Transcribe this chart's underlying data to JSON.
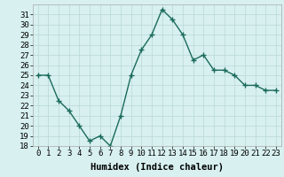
{
  "x": [
    0,
    1,
    2,
    3,
    4,
    5,
    6,
    7,
    8,
    9,
    10,
    11,
    12,
    13,
    14,
    15,
    16,
    17,
    18,
    19,
    20,
    21,
    22,
    23
  ],
  "y": [
    25,
    25,
    22.5,
    21.5,
    20,
    18.5,
    19,
    18,
    21,
    25,
    27.5,
    29,
    31.5,
    30.5,
    29,
    26.5,
    27,
    25.5,
    25.5,
    25,
    24,
    24,
    23.5,
    23.5
  ],
  "line_color": "#1a6b5a",
  "marker": "+",
  "marker_size": 4,
  "bg_color": "#d8f0f0",
  "grid_color": "#b8d8d4",
  "xlabel": "Humidex (Indice chaleur)",
  "ylim": [
    18,
    32
  ],
  "xlim": [
    -0.5,
    23.5
  ],
  "yticks": [
    18,
    19,
    20,
    21,
    22,
    23,
    24,
    25,
    26,
    27,
    28,
    29,
    30,
    31
  ],
  "xticks": [
    0,
    1,
    2,
    3,
    4,
    5,
    6,
    7,
    8,
    9,
    10,
    11,
    12,
    13,
    14,
    15,
    16,
    17,
    18,
    19,
    20,
    21,
    22,
    23
  ],
  "tick_label_size": 6.5,
  "xlabel_size": 7.5,
  "line_width": 1.0
}
